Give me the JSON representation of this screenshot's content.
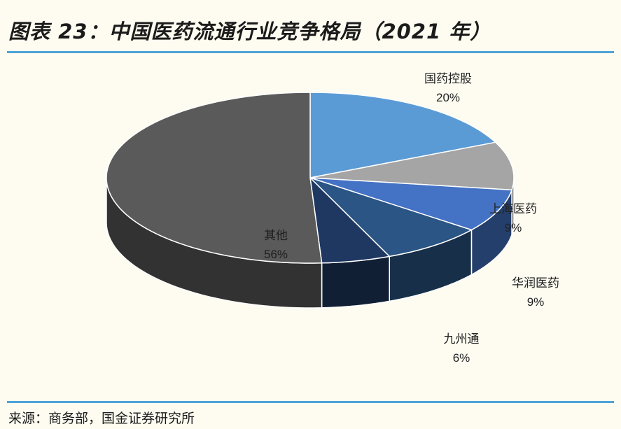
{
  "page": {
    "title": "图表 23：中国医药流通行业竞争格局（2021 年）",
    "source": "来源：商务部，国金证券研究所"
  },
  "chart_data": {
    "type": "pie",
    "style": "3d",
    "title": "",
    "slices": [
      {
        "label": "国药控股",
        "value": 20,
        "pct_label": "20%",
        "color": "#5b9bd5"
      },
      {
        "label": "",
        "value": 10,
        "pct_label": "",
        "color": "#a5a5a5"
      },
      {
        "label": "上海医药",
        "value": 9,
        "pct_label": "9%",
        "color": "#4472c4"
      },
      {
        "label": "华润医药",
        "value": 9,
        "pct_label": "9%",
        "color": "#2a5584"
      },
      {
        "label": "九州通",
        "value": 6,
        "pct_label": "6%",
        "color": "#1f3861"
      },
      {
        "label": "其他",
        "value": 56,
        "pct_label": "56%",
        "color": "#5a5a5a"
      }
    ]
  }
}
